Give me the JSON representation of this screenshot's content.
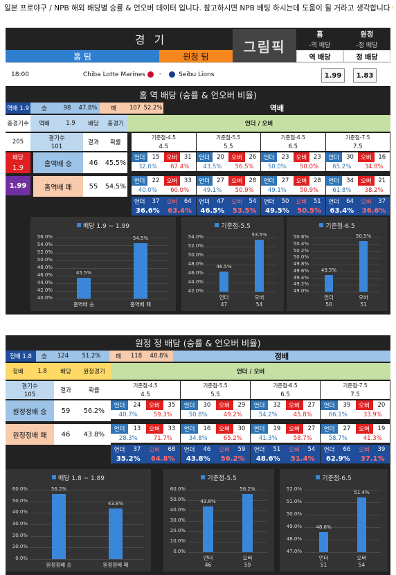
{
  "intro": "일본 프로야구 / NPB 해외 배당별 승률 & 언오버 데이터 입니다. 참고하시면 NPB 베팅 하시는데 도움이 될 거라고 생각합니다",
  "board": {
    "game_label": "경 기",
    "logo": "그림픽",
    "home_col": "홈",
    "away_col": "원정",
    "home_sub": "-역 배당",
    "away_sub": "-정 배당",
    "home_team_label": "홈 팀",
    "away_team_label": "원정 팀",
    "reverse_odds": "역 배당",
    "straight_odds": "정 배당",
    "time": "18:00",
    "home_team": "Chiba Lotte Marines",
    "dash": "-",
    "away_team": "Seibu Lions",
    "odds_home": "1.99",
    "odds_away": "1.83"
  },
  "sec1": {
    "title": "홈 역 배당 (승률 & 언오버 비율)",
    "top": {
      "tag": "역배 1.9",
      "win": "승",
      "win_n": "98",
      "win_p": "47.8%",
      "lose": "패",
      "lose_n": "107",
      "lose_p": "52.2%",
      "label": "역배"
    },
    "hdr": {
      "total": "총경기수",
      "rev": "역배",
      "odd": "1.9",
      "bet": "배당",
      "home_game": "홈경기",
      "uo": "언더 / 오버"
    },
    "sub": {
      "total_n": "205",
      "games": "경기수",
      "games_n": "101",
      "result": "결과",
      "rate": "확률"
    },
    "base": [
      "기준점-4.5",
      "기준점-5.5",
      "기준점-6.5",
      "기준점-7.5"
    ],
    "base_v": [
      "4.5",
      "5.5",
      "6.5",
      "7.5"
    ],
    "side": {
      "bet": "배당",
      "odd1": "1.9",
      "odd2": "1.99"
    },
    "rows": [
      {
        "label": "홈역배 승",
        "n": "46",
        "p": "45.5%",
        "uo": [
          [
            "15",
            "31",
            "32.6%",
            "67.4%"
          ],
          [
            "20",
            "26",
            "43.5%",
            "56.5%"
          ],
          [
            "23",
            "23",
            "50.0%",
            "50.0%"
          ],
          [
            "30",
            "16",
            "65.2%",
            "34.8%"
          ]
        ]
      },
      {
        "label": "홈역배 패",
        "n": "55",
        "p": "54.5%",
        "uo": [
          [
            "22",
            "33",
            "40.0%",
            "60.0%"
          ],
          [
            "27",
            "28",
            "49.1%",
            "50.9%"
          ],
          [
            "27",
            "28",
            "49.1%",
            "50.9%"
          ],
          [
            "34",
            "21",
            "61.8%",
            "38.2%"
          ]
        ]
      }
    ],
    "tot": [
      [
        "37",
        "64",
        "36.6%",
        "63.4%"
      ],
      [
        "47",
        "54",
        "46.5%",
        "53.5%"
      ],
      [
        "50",
        "51",
        "49.5%",
        "50.5%"
      ],
      [
        "64",
        "37",
        "63.4%",
        "36.6%"
      ]
    ],
    "under": "언더",
    "over": "오버"
  },
  "sec2": {
    "title": "원정 정 배당 (승률 & 언오버 비율)",
    "top": {
      "tag": "정배 1.8",
      "win": "승",
      "win_n": "124",
      "win_p": "51.2%",
      "lose": "패",
      "lose_n": "118",
      "lose_p": "48.8%",
      "label": "정배"
    },
    "hdr": {
      "rev": "정배",
      "odd": "1.8",
      "bet": "배당",
      "home_game": "원정경기",
      "uo": "언더 / 오버"
    },
    "sub": {
      "games": "경기수",
      "games_n": "105",
      "result": "결과",
      "rate": "확률"
    },
    "base": [
      "기준점-4.5",
      "기준점-5.5",
      "기준점-6.5",
      "기준점-7.5"
    ],
    "base_v": [
      "4.5",
      "5.5",
      "6.5",
      "7.5"
    ],
    "rows": [
      {
        "label": "원정정배 승",
        "n": "59",
        "p": "56.2%",
        "uo": [
          [
            "24",
            "35",
            "40.7%",
            "59.3%"
          ],
          [
            "30",
            "29",
            "50.8%",
            "49.2%"
          ],
          [
            "32",
            "27",
            "54.2%",
            "45.8%"
          ],
          [
            "39",
            "20",
            "66.1%",
            "33.9%"
          ]
        ]
      },
      {
        "label": "원정정배 패",
        "n": "46",
        "p": "43.8%",
        "uo": [
          [
            "13",
            "33",
            "28.3%",
            "71.7%"
          ],
          [
            "16",
            "30",
            "34.8%",
            "65.2%"
          ],
          [
            "19",
            "27",
            "41.3%",
            "58.7%"
          ],
          [
            "27",
            "19",
            "58.7%",
            "41.3%"
          ]
        ]
      }
    ],
    "tot": [
      [
        "37",
        "68",
        "35.2%",
        "64.8%"
      ],
      [
        "46",
        "59",
        "43.8%",
        "56.2%"
      ],
      [
        "51",
        "54",
        "48.6%",
        "51.4%"
      ],
      [
        "66",
        "39",
        "62.9%",
        "37.1%"
      ]
    ],
    "under": "언더",
    "over": "오버"
  },
  "chart_data": [
    {
      "type": "bar",
      "title": "배당 1.9 ~ 1.99",
      "categories": [
        "홈역배 승",
        "홈역배 패"
      ],
      "values": [
        45.5,
        54.5
      ],
      "labels": [
        "45.5%",
        "54.5%"
      ],
      "ylim": [
        40,
        56
      ],
      "yticks": [
        "56.0%",
        "54.0%",
        "52.0%",
        "50.0%",
        "48.0%",
        "46.0%",
        "44.0%",
        "42.0%",
        "40.0%"
      ],
      "sub": []
    },
    {
      "type": "bar",
      "title": "기준점-5.5",
      "categories": [
        "언더",
        "오버"
      ],
      "values": [
        46.5,
        53.5
      ],
      "labels": [
        "46.5%",
        "53.5%"
      ],
      "ylim": [
        42,
        54
      ],
      "yticks": [
        "54.0%",
        "52.0%",
        "50.0%",
        "48.0%",
        "46.0%",
        "44.0%",
        "42.0%"
      ],
      "sub": [
        "47",
        "54"
      ]
    },
    {
      "type": "bar",
      "title": "기준점-6.5",
      "categories": [
        "언더",
        "오버"
      ],
      "values": [
        49.5,
        50.5
      ],
      "labels": [
        "49.5%",
        "50.5%"
      ],
      "ylim": [
        49,
        50.6
      ],
      "yticks": [
        "50.6%",
        "50.4%",
        "50.2%",
        "50.0%",
        "49.8%",
        "49.6%",
        "49.4%",
        "49.2%",
        "49.0%"
      ],
      "sub": [
        "50",
        "51"
      ]
    },
    {
      "type": "bar",
      "title": "배당 1.8 ~ 1.89",
      "categories": [
        "원정정배 승",
        "원정정배 패"
      ],
      "values": [
        56.2,
        43.8
      ],
      "labels": [
        "56.2%",
        "43.8%"
      ],
      "ylim": [
        0,
        60
      ],
      "yticks": [
        "60.0%",
        "50.0%",
        "40.0%",
        "30.0%",
        "20.0%",
        "10.0%",
        "0.0%"
      ],
      "sub": []
    },
    {
      "type": "bar",
      "title": "기준점-5.5",
      "categories": [
        "언더",
        "오버"
      ],
      "values": [
        43.8,
        56.2
      ],
      "labels": [
        "43.8%",
        "56.2%"
      ],
      "ylim": [
        0,
        60
      ],
      "yticks": [
        "60.0%",
        "50.0%",
        "40.0%",
        "30.0%",
        "20.0%",
        "10.0%",
        "0.0%"
      ],
      "sub": [
        "46",
        "59"
      ]
    },
    {
      "type": "bar",
      "title": "기준점-6.5",
      "categories": [
        "언더",
        "오버"
      ],
      "values": [
        48.6,
        51.4
      ],
      "labels": [
        "48.6%",
        "51.4%"
      ],
      "ylim": [
        47,
        52
      ],
      "yticks": [
        "52.0%",
        "51.0%",
        "50.0%",
        "49.0%",
        "48.0%",
        "47.0%"
      ],
      "sub": [
        "51",
        "54"
      ]
    }
  ],
  "colors": {
    "accent_blue": "#3a86d8",
    "orange": "#f5871f",
    "under": "#2f75b5",
    "over": "#e02020"
  }
}
